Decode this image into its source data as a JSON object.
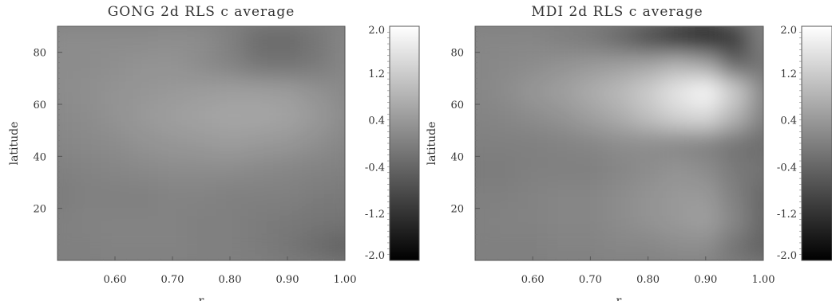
{
  "chart_data": [
    {
      "type": "heatmap",
      "title": "GONG 2d RLS c average",
      "xlabel": "r",
      "ylabel": "latitude",
      "xlim": [
        0.5,
        1.0
      ],
      "ylim": [
        0,
        90
      ],
      "xticks": [
        "0.60",
        "0.70",
        "0.80",
        "0.90",
        "1.00"
      ],
      "xtick_values": [
        0.6,
        0.7,
        0.8,
        0.9,
        1.0
      ],
      "yticks": [
        "20",
        "40",
        "60",
        "80"
      ],
      "ytick_values": [
        20,
        40,
        60,
        80
      ],
      "colorbar": {
        "min": -2.0,
        "max": 2.0,
        "ticks": [
          "2.0",
          "1.2",
          "0.4",
          "-0.4",
          "-1.2",
          "-2.0"
        ],
        "tick_values": [
          2.0,
          1.2,
          0.4,
          -0.4,
          -1.2,
          -2.0
        ],
        "colormap": "grayscale"
      },
      "grid_r": [
        0.5,
        0.55,
        0.6,
        0.65,
        0.7,
        0.75,
        0.8,
        0.85,
        0.9,
        0.95,
        1.0
      ],
      "grid_lat": [
        85,
        75,
        65,
        55,
        45,
        35,
        25,
        15,
        5
      ],
      "values": [
        [
          0.2,
          0.2,
          0.2,
          0.2,
          0.25,
          0.2,
          0.0,
          -0.3,
          -0.35,
          -0.15,
          0.1
        ],
        [
          0.2,
          0.2,
          0.25,
          0.3,
          0.3,
          0.2,
          0.05,
          -0.15,
          -0.2,
          -0.1,
          0.1
        ],
        [
          0.2,
          0.25,
          0.3,
          0.35,
          0.4,
          0.45,
          0.5,
          0.5,
          0.45,
          0.3,
          0.15
        ],
        [
          0.15,
          0.2,
          0.3,
          0.4,
          0.5,
          0.55,
          0.6,
          0.6,
          0.55,
          0.4,
          0.2
        ],
        [
          0.1,
          0.15,
          0.2,
          0.3,
          0.35,
          0.4,
          0.45,
          0.4,
          0.35,
          0.25,
          0.1
        ],
        [
          0.0,
          0.05,
          0.1,
          0.15,
          0.2,
          0.2,
          0.2,
          0.15,
          0.1,
          0.05,
          0.0
        ],
        [
          -0.05,
          0.0,
          0.0,
          0.0,
          0.05,
          0.05,
          0.0,
          0.0,
          0.0,
          -0.05,
          -0.1
        ],
        [
          0.0,
          0.05,
          0.05,
          0.05,
          0.05,
          0.0,
          0.0,
          -0.05,
          -0.1,
          -0.15,
          -0.2
        ],
        [
          0.0,
          0.0,
          0.05,
          0.05,
          0.05,
          0.0,
          0.0,
          -0.05,
          -0.15,
          -0.3,
          -0.5
        ]
      ]
    },
    {
      "type": "heatmap",
      "title": "MDI 2d RLS c average",
      "xlabel": "r",
      "ylabel": "latitude",
      "xlim": [
        0.5,
        1.0
      ],
      "ylim": [
        0,
        90
      ],
      "xticks": [
        "0.60",
        "0.70",
        "0.80",
        "0.90",
        "1.00"
      ],
      "xtick_values": [
        0.6,
        0.7,
        0.8,
        0.9,
        1.0
      ],
      "yticks": [
        "20",
        "40",
        "60",
        "80"
      ],
      "ytick_values": [
        20,
        40,
        60,
        80
      ],
      "colorbar": {
        "min": -2.0,
        "max": 2.0,
        "ticks": [
          "2.0",
          "1.2",
          "0.4",
          "-0.4",
          "-1.2",
          "-2.0"
        ],
        "tick_values": [
          2.0,
          1.2,
          0.4,
          -0.4,
          -1.2,
          -2.0
        ],
        "colormap": "grayscale"
      },
      "grid_r": [
        0.5,
        0.55,
        0.6,
        0.65,
        0.7,
        0.75,
        0.8,
        0.85,
        0.9,
        0.95,
        1.0
      ],
      "grid_lat": [
        85,
        75,
        65,
        55,
        45,
        35,
        25,
        15,
        5
      ],
      "values": [
        [
          0.1,
          0.1,
          0.1,
          0.0,
          -0.1,
          -0.4,
          -0.9,
          -1.5,
          -2.0,
          -1.2,
          0.0
        ],
        [
          0.1,
          0.15,
          0.2,
          0.3,
          0.4,
          0.5,
          0.6,
          0.8,
          0.6,
          -0.4,
          -0.2
        ],
        [
          0.1,
          0.2,
          0.35,
          0.5,
          0.7,
          0.9,
          1.2,
          1.6,
          1.9,
          1.2,
          0.1
        ],
        [
          0.05,
          0.1,
          0.2,
          0.3,
          0.5,
          0.7,
          1.0,
          1.3,
          1.4,
          0.8,
          0.0
        ],
        [
          0.0,
          0.0,
          0.0,
          0.05,
          0.1,
          0.2,
          0.2,
          0.1,
          0.0,
          -0.2,
          -0.3
        ],
        [
          -0.05,
          -0.05,
          0.0,
          0.0,
          0.0,
          0.1,
          0.2,
          0.3,
          0.2,
          -0.1,
          -0.2
        ],
        [
          0.0,
          0.0,
          0.05,
          0.1,
          0.1,
          0.2,
          0.3,
          0.4,
          0.4,
          0.0,
          -0.4
        ],
        [
          0.0,
          0.05,
          0.05,
          0.1,
          0.1,
          0.2,
          0.3,
          0.4,
          0.5,
          0.1,
          -0.4
        ],
        [
          0.0,
          0.0,
          0.0,
          0.05,
          0.05,
          0.1,
          0.1,
          0.2,
          0.2,
          -0.2,
          -0.5
        ]
      ]
    }
  ]
}
